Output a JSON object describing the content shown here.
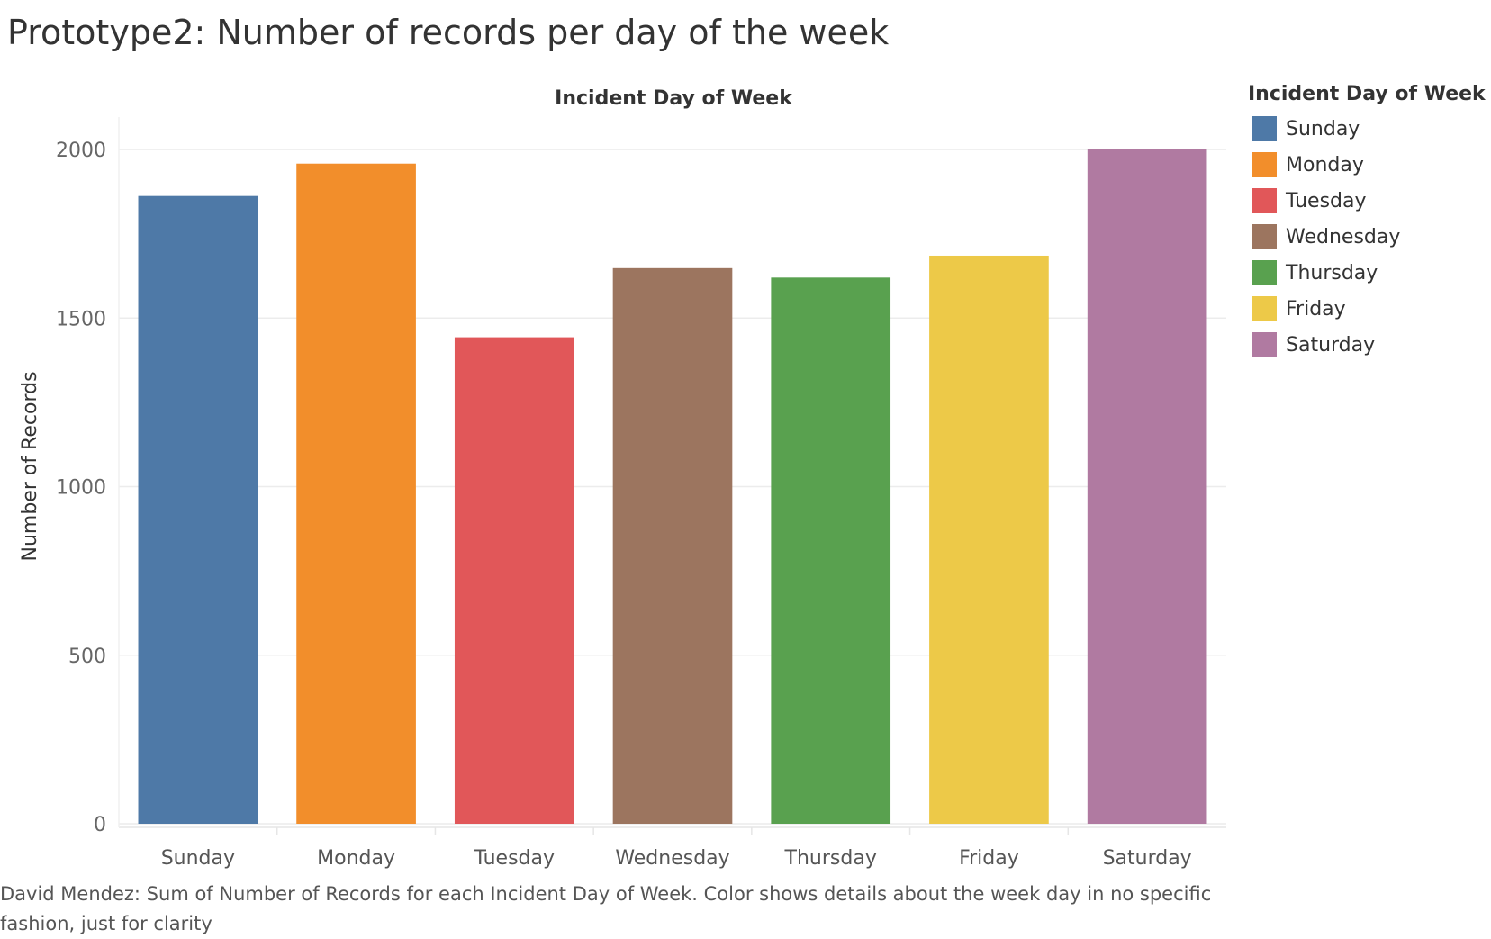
{
  "page": {
    "title": "Prototype2: Number of records per day of the week",
    "caption": "David Mendez: Sum of Number of Records for each Incident Day of Week.  Color shows details about the week day in no specific fashion, just for clarity"
  },
  "legend": {
    "title": "Incident Day of Week",
    "items": [
      {
        "label": "Sunday",
        "color": "#4e79a7"
      },
      {
        "label": "Monday",
        "color": "#f28e2b"
      },
      {
        "label": "Tuesday",
        "color": "#e15759"
      },
      {
        "label": "Wednesday",
        "color": "#9c755f"
      },
      {
        "label": "Thursday",
        "color": "#59a14f"
      },
      {
        "label": "Friday",
        "color": "#edc948"
      },
      {
        "label": "Saturday",
        "color": "#b07aa1"
      }
    ]
  },
  "chart_data": {
    "type": "bar",
    "title": "Incident Day of Week",
    "xlabel": "",
    "ylabel": "Number of Records",
    "categories": [
      "Sunday",
      "Monday",
      "Tuesday",
      "Wednesday",
      "Thursday",
      "Friday",
      "Saturday"
    ],
    "values": [
      1862,
      1958,
      1443,
      1648,
      1620,
      1685,
      2000
    ],
    "colors": [
      "#4e79a7",
      "#f28e2b",
      "#e15759",
      "#9c755f",
      "#59a14f",
      "#edc948",
      "#b07aa1"
    ],
    "yticks": [
      0,
      500,
      1000,
      1500,
      2000
    ],
    "ylim": [
      0,
      2000
    ],
    "grid": true,
    "legend_position": "right"
  }
}
